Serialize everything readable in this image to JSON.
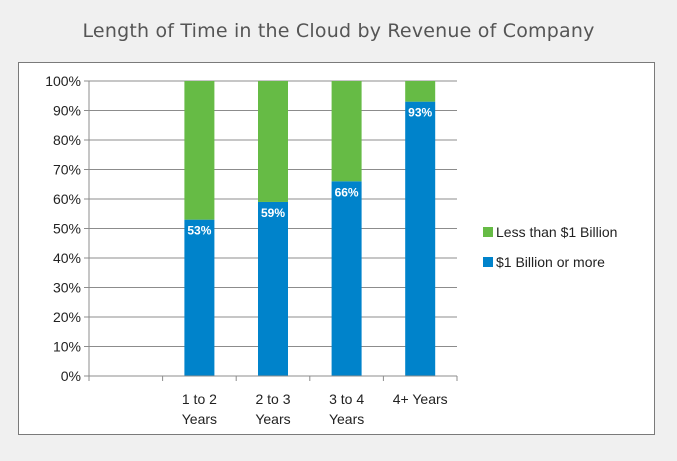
{
  "chart_data": {
    "type": "bar",
    "stacked": true,
    "title": "Length of Time in the Cloud by Revenue of Company",
    "categories": [
      "",
      "1 to 2 Years",
      "2 to 3 Years",
      "3 to 4 Years",
      "4+ Years"
    ],
    "category_lines": [
      [],
      [
        "1 to 2",
        "Years"
      ],
      [
        "2 to 3",
        "Years"
      ],
      [
        "3 to 4",
        "Years"
      ],
      [
        "4+ Years"
      ]
    ],
    "series": [
      {
        "name": "$1 Billion or more",
        "color": "#0083cb",
        "values": [
          null,
          53,
          59,
          66,
          93
        ],
        "labels": [
          "",
          "53%",
          "59%",
          "66%",
          "93%"
        ]
      },
      {
        "name": "Less than $1 Billion",
        "color": "#66bb45",
        "values": [
          null,
          47,
          41,
          34,
          7
        ]
      }
    ],
    "ylim": [
      0,
      100
    ],
    "yticks": [
      0,
      10,
      20,
      30,
      40,
      50,
      60,
      70,
      80,
      90,
      100
    ],
    "ytick_labels": [
      "0%",
      "10%",
      "20%",
      "30%",
      "40%",
      "50%",
      "60%",
      "70%",
      "80%",
      "90%",
      "100%"
    ],
    "legend_position": "right",
    "legend_order": [
      "Less than $1 Billion",
      "$1 Billion or more"
    ],
    "grid": true,
    "xlabel": "",
    "ylabel": ""
  }
}
